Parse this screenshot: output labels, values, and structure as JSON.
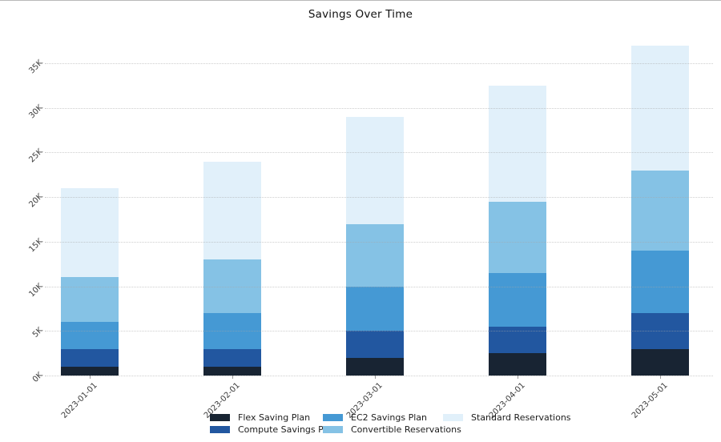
{
  "chart_data": {
    "type": "bar",
    "stacked": true,
    "title": "Savings Over Time",
    "categories": [
      "2023-01-01",
      "2023-02-01",
      "2023-03-01",
      "2023-04-01",
      "2023-05-01"
    ],
    "series": [
      {
        "name": "Flex Saving Plan",
        "color": "#182433",
        "values": [
          1000,
          1000,
          2000,
          2500,
          3000
        ]
      },
      {
        "name": "Compute Savings Plan",
        "color": "#2257a0",
        "values": [
          2000,
          2000,
          3000,
          3000,
          4000
        ]
      },
      {
        "name": "EC2 Savings Plan",
        "color": "#4599d4",
        "values": [
          3000,
          4000,
          5000,
          6000,
          7000
        ]
      },
      {
        "name": "Convertible Reservations",
        "color": "#85c2e5",
        "values": [
          5000,
          6000,
          7000,
          8000,
          9000
        ]
      },
      {
        "name": "Standard Reservations",
        "color": "#e1f0fa",
        "values": [
          10000,
          11000,
          12000,
          13000,
          14000
        ]
      }
    ],
    "stack_totals": [
      21000,
      24000,
      29000,
      32500,
      37000
    ],
    "y_ticks": [
      "0K",
      "5K",
      "10K",
      "15K",
      "20K",
      "25K",
      "30K",
      "35K"
    ],
    "y_tick_values": [
      0,
      5000,
      10000,
      15000,
      20000,
      25000,
      30000,
      35000
    ],
    "ylim": [
      0,
      38400
    ],
    "xlabel": "",
    "ylabel": "",
    "grid": "horizontal-dotted",
    "legend_position": "bottom",
    "legend_columns": [
      [
        "Flex Saving Plan",
        "Compute Savings Plan"
      ],
      [
        "EC2 Savings Plan",
        "Convertible Reservations"
      ],
      [
        "Standard Reservations"
      ]
    ]
  }
}
